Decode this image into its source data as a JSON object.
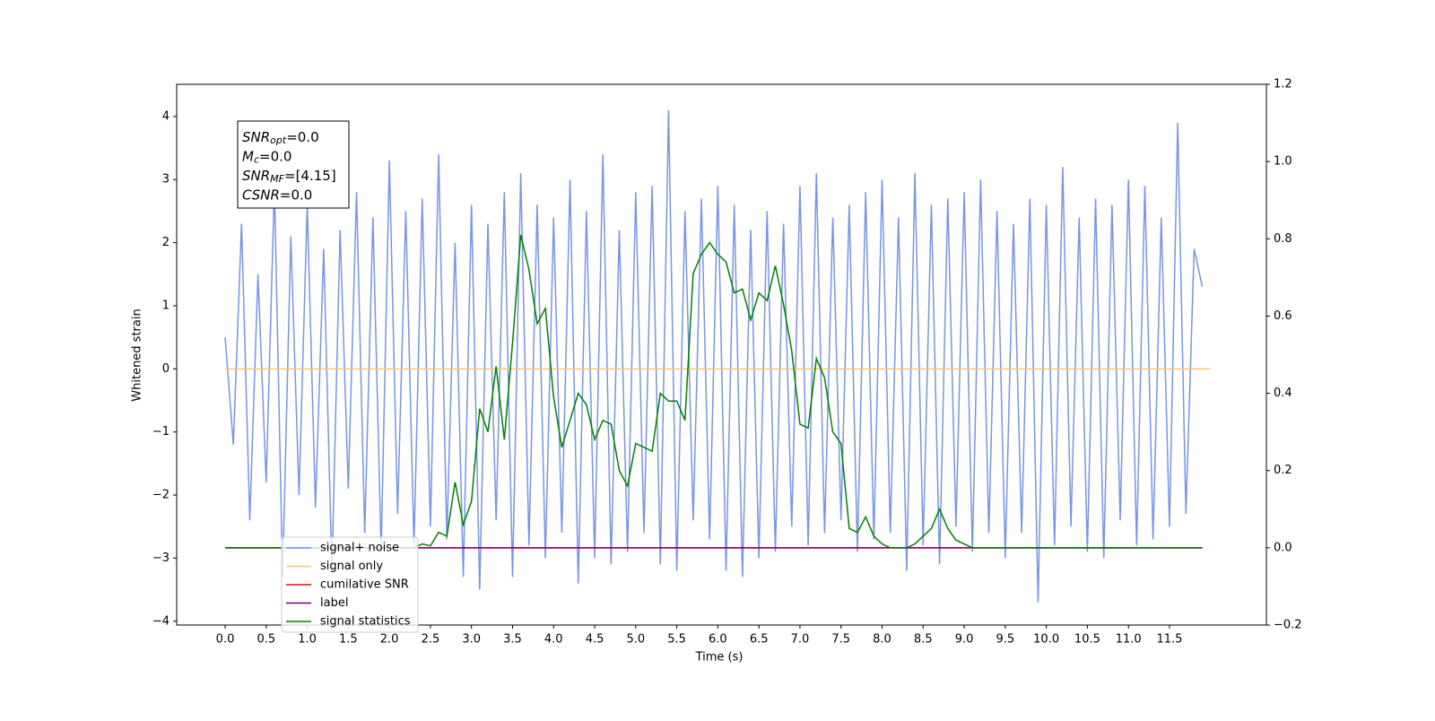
{
  "chart_data": {
    "type": "line",
    "xlabel": "Time (s)",
    "ylabel": "Whitened strain",
    "annotations": [
      {
        "symbol": "SNR",
        "subscript": "opt",
        "text": "=0.0"
      },
      {
        "symbol": "M",
        "subscript": "c",
        "text": "=0.0"
      },
      {
        "symbol": "SNR",
        "subscript": "MF",
        "text": "=[4.15]"
      },
      {
        "symbol": "CSNR",
        "subscript": null,
        "text": "=0.0"
      }
    ],
    "xlim": [
      -0.59,
      12.68
    ],
    "xticks": [
      {
        "value": 0,
        "label": "0.0"
      },
      0.5,
      {
        "value": 1,
        "label": "1.0"
      },
      1.5,
      {
        "value": 2,
        "label": "2.0"
      },
      2.5,
      {
        "value": 3,
        "label": "3.0"
      },
      3.5,
      {
        "value": 4,
        "label": "4.0"
      },
      4.5,
      {
        "value": 5,
        "label": "5.0"
      },
      5.5,
      {
        "value": 6,
        "label": "6.0"
      },
      6.5,
      {
        "value": 7,
        "label": "7.0"
      },
      7.5,
      {
        "value": 8,
        "label": "8.0"
      },
      8.5,
      {
        "value": 9,
        "label": "9.0"
      },
      9.5,
      {
        "value": 10,
        "label": "10.0"
      },
      10.5,
      {
        "value": 11,
        "label": "11.0"
      },
      11.5
    ],
    "ylim": [
      -4.06,
      4.51
    ],
    "yticks": [
      {
        "value": -4,
        "label": "−4"
      },
      {
        "value": -3,
        "label": "−3"
      },
      {
        "value": -2,
        "label": "−2"
      },
      {
        "value": -1,
        "label": "−1"
      },
      0,
      1,
      2,
      3,
      4
    ],
    "y2lim": [
      -0.2,
      1.2
    ],
    "y2ticks": [
      {
        "value": -0.2,
        "label": "−0.2"
      },
      {
        "value": 0,
        "label": "0.0"
      },
      0.2,
      0.4,
      0.6,
      0.8,
      {
        "value": 1,
        "label": "1.0"
      },
      1.2
    ],
    "x": [
      0,
      0.1,
      0.2,
      0.3,
      0.4,
      0.5,
      0.6,
      0.7,
      0.8,
      0.9,
      1,
      1.1,
      1.2,
      1.3,
      1.4,
      1.5,
      1.6,
      1.7,
      1.8,
      1.9,
      2,
      2.1,
      2.2,
      2.3,
      2.4,
      2.5,
      2.6,
      2.7,
      2.8,
      2.9,
      3,
      3.1,
      3.2,
      3.3,
      3.4,
      3.5,
      3.6,
      3.7,
      3.8,
      3.9,
      4,
      4.1,
      4.2,
      4.3,
      4.4,
      4.5,
      4.6,
      4.7,
      4.8,
      4.9,
      5,
      5.1,
      5.2,
      5.3,
      5.4,
      5.5,
      5.6,
      5.7,
      5.8,
      5.9,
      6,
      6.1,
      6.2,
      6.3,
      6.4,
      6.5,
      6.6,
      6.7,
      6.8,
      6.9,
      7,
      7.1,
      7.2,
      7.3,
      7.4,
      7.5,
      7.6,
      7.7,
      7.8,
      7.9,
      8,
      8.1,
      8.2,
      8.3,
      8.4,
      8.5,
      8.6,
      8.7,
      8.8,
      8.9,
      9,
      9.1,
      9.2,
      9.3,
      9.4,
      9.5,
      9.6,
      9.7,
      9.8,
      9.9,
      10,
      10.1,
      10.2,
      10.3,
      10.4,
      10.5,
      10.6,
      10.7,
      10.8,
      10.9,
      11,
      11.1,
      11.2,
      11.3,
      11.4,
      11.5,
      11.6,
      11.7,
      11.8,
      11.9
    ],
    "series": [
      {
        "name": "signal+ noise",
        "color": "#7794e8",
        "values": [
          0.5,
          -1.2,
          2.3,
          -2.4,
          1.5,
          -1.8,
          2.9,
          -3.3,
          2.1,
          -2.0,
          2.6,
          -2.2,
          1.9,
          -3.2,
          2.2,
          -1.9,
          2.8,
          -2.6,
          2.4,
          -2.9,
          3.3,
          -2.3,
          2.5,
          -2.8,
          2.7,
          -2.5,
          3.4,
          -2.7,
          2.0,
          -3.3,
          2.6,
          -3.5,
          2.3,
          -2.4,
          2.8,
          -3.3,
          3.1,
          -2.8,
          2.6,
          -3.0,
          2.4,
          -2.6,
          3.0,
          -3.4,
          2.5,
          -3.0,
          3.4,
          -3.1,
          2.2,
          -2.9,
          2.8,
          -2.6,
          2.9,
          -3.1,
          4.1,
          -3.2,
          2.5,
          -2.4,
          2.7,
          -2.7,
          2.9,
          -3.2,
          2.6,
          -3.3,
          2.2,
          -3.0,
          2.5,
          -2.9,
          2.3,
          -2.5,
          2.9,
          -2.8,
          3.1,
          -2.6,
          2.4,
          -2.4,
          2.6,
          -2.9,
          2.8,
          -2.7,
          3.0,
          -2.6,
          2.4,
          -3.2,
          3.1,
          -2.8,
          2.6,
          -3.1,
          2.7,
          -2.5,
          2.8,
          -2.9,
          3.0,
          -2.6,
          2.5,
          -3.0,
          2.3,
          -2.6,
          2.7,
          -3.7,
          2.6,
          -2.8,
          3.2,
          -2.5,
          2.4,
          -2.9,
          2.7,
          -3.0,
          2.6,
          -2.4,
          3.0,
          -2.8,
          2.9,
          -2.7,
          2.4,
          -2.5,
          3.9,
          -2.3,
          1.9,
          1.3
        ]
      },
      {
        "name": "signal only",
        "color": "#ffc470",
        "x": [
          0,
          12
        ],
        "values": [
          0,
          0
        ]
      },
      {
        "name": "cumilative SNR",
        "color": "#ff0000",
        "axis": "y2",
        "x": [
          0,
          11.9
        ],
        "values": [
          0,
          0
        ]
      },
      {
        "name": "label",
        "color": "#800080",
        "axis": "y2",
        "x": [
          0,
          11.9
        ],
        "values": [
          0,
          0
        ]
      },
      {
        "name": "signal statistics",
        "color": "#008000",
        "axis": "y2",
        "values": [
          0,
          0,
          0,
          0,
          0,
          0,
          0,
          0,
          0,
          0,
          0,
          0,
          0,
          0,
          0,
          0,
          0,
          0,
          0,
          0,
          0,
          0,
          0,
          0,
          0.01,
          0.005,
          0.04,
          0.03,
          0.17,
          0.06,
          0.12,
          0.36,
          0.3,
          0.47,
          0.28,
          0.53,
          0.81,
          0.72,
          0.58,
          0.62,
          0.39,
          0.26,
          0.33,
          0.4,
          0.37,
          0.28,
          0.33,
          0.32,
          0.2,
          0.16,
          0.27,
          0.26,
          0.25,
          0.4,
          0.38,
          0.38,
          0.33,
          0.71,
          0.76,
          0.79,
          0.76,
          0.74,
          0.66,
          0.67,
          0.59,
          0.66,
          0.64,
          0.73,
          0.63,
          0.51,
          0.32,
          0.31,
          0.49,
          0.44,
          0.3,
          0.27,
          0.05,
          0.04,
          0.08,
          0.03,
          0.01,
          0,
          0,
          0,
          0.01,
          0.03,
          0.05,
          0.1,
          0.05,
          0.02,
          0.01,
          0,
          0,
          0,
          0,
          0,
          0,
          0,
          0,
          0,
          0,
          0,
          0,
          0,
          0,
          0,
          0,
          0,
          0,
          0,
          0,
          0,
          0,
          0,
          0,
          0,
          0,
          0,
          0,
          0
        ]
      }
    ]
  }
}
